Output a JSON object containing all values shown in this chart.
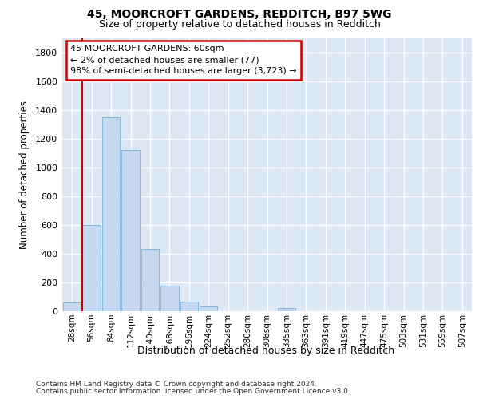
{
  "title1": "45, MOORCROFT GARDENS, REDDITCH, B97 5WG",
  "title2": "Size of property relative to detached houses in Redditch",
  "xlabel": "Distribution of detached houses by size in Redditch",
  "ylabel": "Number of detached properties",
  "categories": [
    "28sqm",
    "56sqm",
    "84sqm",
    "112sqm",
    "140sqm",
    "168sqm",
    "196sqm",
    "224sqm",
    "252sqm",
    "280sqm",
    "308sqm",
    "335sqm",
    "363sqm",
    "391sqm",
    "419sqm",
    "447sqm",
    "475sqm",
    "503sqm",
    "531sqm",
    "559sqm",
    "587sqm"
  ],
  "values": [
    60,
    600,
    1350,
    1120,
    430,
    175,
    65,
    35,
    0,
    0,
    0,
    20,
    0,
    0,
    0,
    0,
    0,
    0,
    0,
    0,
    0
  ],
  "bar_color": "#c5d8f0",
  "bar_edge_color": "#7aadd4",
  "highlight_index": 1,
  "highlight_color": "#cc0000",
  "annotation_line1": "45 MOORCROFT GARDENS: 60sqm",
  "annotation_line2": "← 2% of detached houses are smaller (77)",
  "annotation_line3": "98% of semi-detached houses are larger (3,723) →",
  "annotation_box_edge": "#cc0000",
  "ylim": [
    0,
    1900
  ],
  "yticks": [
    0,
    200,
    400,
    600,
    800,
    1000,
    1200,
    1400,
    1600,
    1800
  ],
  "fig_bg": "#ffffff",
  "plot_bg": "#dde8f5",
  "footer1": "Contains HM Land Registry data © Crown copyright and database right 2024.",
  "footer2": "Contains public sector information licensed under the Open Government Licence v3.0."
}
